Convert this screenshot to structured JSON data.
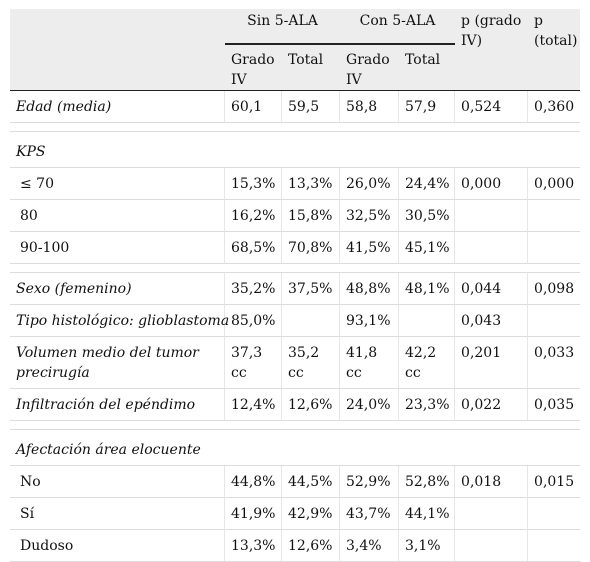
{
  "header": {
    "group1": "Sin 5-ALA",
    "group2": "Con 5-ALA",
    "p_grado": "p (grado IV)",
    "p_total": "p (total)",
    "sub": [
      "Grado IV",
      "Total",
      "Grado IV",
      "Total"
    ]
  },
  "rows": {
    "edad": {
      "label": "Edad (media)",
      "v": [
        "60,1",
        "59,5",
        "58,8",
        "57,9",
        "0,524",
        "0,360"
      ]
    },
    "kps": {
      "label": "KPS"
    },
    "kps70": {
      "label": "≤ 70",
      "v": [
        "15,3%",
        "13,3%",
        "26,0%",
        "24,4%",
        "0,000",
        "0,000"
      ]
    },
    "kps80": {
      "label": "80",
      "v": [
        "16,2%",
        "15,8%",
        "32,5%",
        "30,5%",
        "",
        ""
      ]
    },
    "kps90": {
      "label": "90-100",
      "v": [
        "68,5%",
        "70,8%",
        "41,5%",
        "45,1%",
        "",
        ""
      ]
    },
    "sexo": {
      "label": "Sexo (femenino)",
      "v": [
        "35,2%",
        "37,5%",
        "48,8%",
        "48,1%",
        "0,044",
        "0,098"
      ]
    },
    "tipo": {
      "label": "Tipo histológico: glioblastoma",
      "v": [
        "85,0%",
        "",
        "93,1%",
        "",
        "0,043",
        ""
      ]
    },
    "volumen": {
      "label": "Volumen medio del tumor precirugía",
      "v": [
        "37,3 cc",
        "35,2 cc",
        "41,8 cc",
        "42,2 cc",
        "0,201",
        "0,033"
      ]
    },
    "infil": {
      "label": "Infiltración del epéndimo",
      "v": [
        "12,4%",
        "12,6%",
        "24,0%",
        "23,3%",
        "0,022",
        "0,035"
      ]
    },
    "afect": {
      "label": "Afectación área elocuente"
    },
    "no": {
      "label": "No",
      "v": [
        "44,8%",
        "44,5%",
        "52,9%",
        "52,8%",
        "0,018",
        "0,015"
      ]
    },
    "si": {
      "label": "Sí",
      "v": [
        "41,9%",
        "42,9%",
        "43,7%",
        "44,1%",
        "",
        ""
      ]
    },
    "dudoso": {
      "label": "Dudoso",
      "v": [
        "13,3%",
        "12,6%",
        "3,4%",
        "3,1%",
        "",
        ""
      ]
    }
  }
}
